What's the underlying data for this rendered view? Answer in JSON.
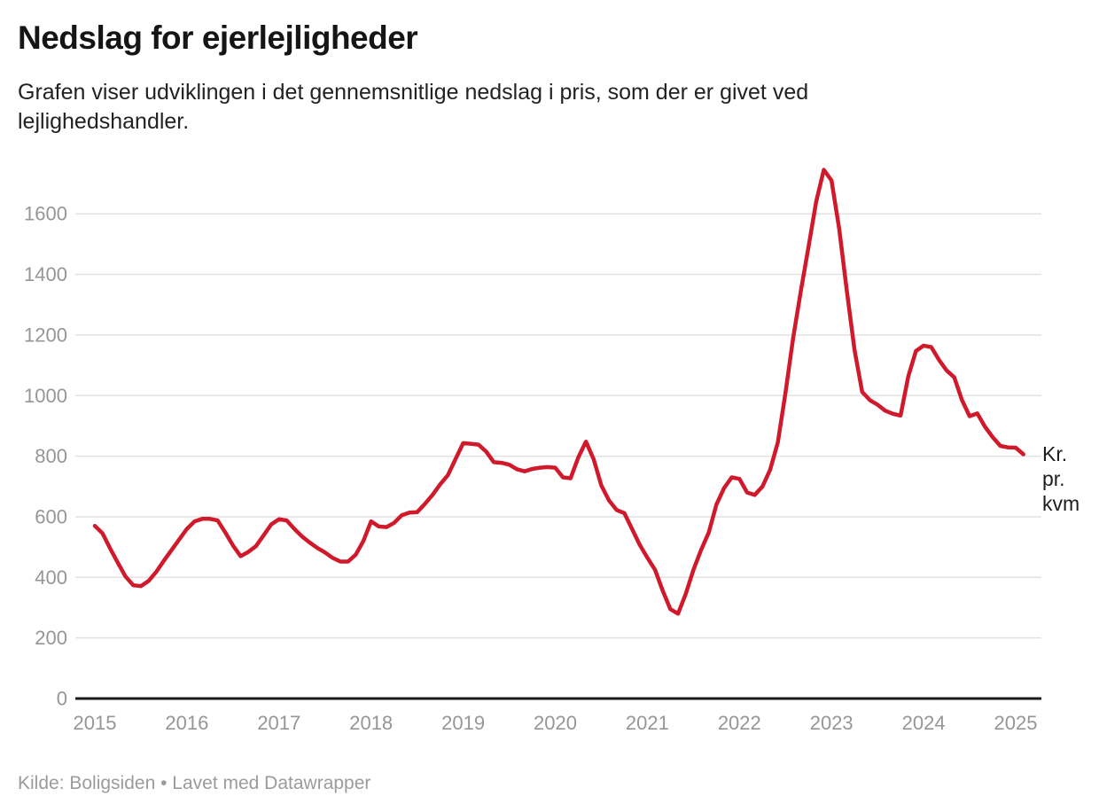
{
  "header": {
    "title": "Nedslag for ejerlejligheder",
    "description": "Grafen viser udviklingen i det gennemsnitlige nedslag i pris, som der er givet ved lejlighedshandler."
  },
  "chart_data": {
    "type": "line",
    "title": "Nedslag for ejerlejligheder",
    "ylabel": "Kr. pr. kvm",
    "xlabel": "",
    "grid": "horizontal",
    "legend": "none",
    "ylim": [
      0,
      1780
    ],
    "y_ticks": [
      0,
      200,
      400,
      600,
      800,
      1000,
      1200,
      1400,
      1600
    ],
    "x_tick_labels": [
      "2015",
      "2016",
      "2017",
      "2018",
      "2019",
      "2020",
      "2021",
      "2022",
      "2023",
      "2024",
      "2025"
    ],
    "line_color": "#d01a2b",
    "axis_color": "#1a1a1a",
    "gridline_color": "#e2e2e2",
    "tick_label_color": "#969696",
    "series": [
      {
        "name": "Gennemsnitligt nedslag, kr. pr. kvm",
        "start": "2015-01",
        "end": "2025-02",
        "monthly": [
          {
            "year": 2015,
            "values": [
              570,
              545,
              495,
              448,
              403,
              374,
              371,
              388,
              418,
              455,
              490,
              525
            ]
          },
          {
            "year": 2016,
            "values": [
              560,
              585,
              593,
              593,
              588,
              548,
              505,
              470,
              484,
              503,
              539,
              575
            ]
          },
          {
            "year": 2017,
            "values": [
              592,
              588,
              560,
              535,
              515,
              497,
              482,
              464,
              452,
              452,
              475,
              520
            ]
          },
          {
            "year": 2018,
            "values": [
              585,
              568,
              566,
              580,
              605,
              614,
              615,
              642,
              672,
              707,
              737,
              790
            ]
          },
          {
            "year": 2019,
            "values": [
              843,
              841,
              838,
              815,
              780,
              778,
              772,
              757,
              750,
              758,
              762,
              764
            ]
          },
          {
            "year": 2020,
            "values": [
              762,
              730,
              727,
              796,
              848,
              790,
              703,
              654,
              622,
              612,
              560,
              508
            ]
          },
          {
            "year": 2021,
            "values": [
              465,
              425,
              356,
              295,
              280,
              345,
              425,
              490,
              548,
              640,
              695,
              730
            ]
          },
          {
            "year": 2022,
            "values": [
              725,
              680,
              672,
              700,
              755,
              845,
              1010,
              1190,
              1345,
              1490,
              1640,
              1745
            ]
          },
          {
            "year": 2023,
            "values": [
              1710,
              1550,
              1345,
              1150,
              1012,
              985,
              970,
              950,
              940,
              934,
              1063,
              1147
            ]
          },
          {
            "year": 2024,
            "values": [
              1165,
              1160,
              1118,
              1083,
              1060,
              985,
              932,
              941,
              897,
              863,
              834,
              829
            ]
          },
          {
            "year": 2025,
            "values": [
              828,
              806
            ]
          }
        ]
      }
    ],
    "annotation": {
      "unit_label": "Kr. pr. kvm"
    }
  },
  "footer": {
    "source": "Kilde: Boligsiden • Lavet med Datawrapper"
  }
}
